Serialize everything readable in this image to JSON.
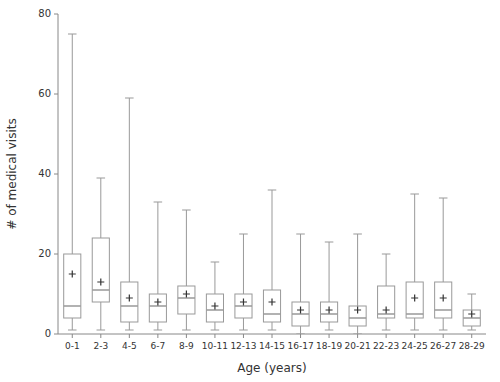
{
  "chart_data": {
    "type": "box",
    "xlabel": "Age (years)",
    "ylabel": "# of medical visits",
    "categories": [
      "0-1",
      "2-3",
      "4-5",
      "6-7",
      "8-9",
      "10-11",
      "12-13",
      "14-15",
      "16-17",
      "18-19",
      "20-21",
      "22-23",
      "24-25",
      "26-27",
      "28-29"
    ],
    "boxes": [
      {
        "whislo": 1,
        "q1": 4,
        "med": 7,
        "q3": 20,
        "whishi": 75,
        "mean": 15
      },
      {
        "whislo": 1,
        "q1": 8,
        "med": 11,
        "q3": 24,
        "whishi": 39,
        "mean": 13
      },
      {
        "whislo": 1,
        "q1": 3,
        "med": 7,
        "q3": 13,
        "whishi": 59,
        "mean": 9
      },
      {
        "whislo": 1,
        "q1": 3,
        "med": 7,
        "q3": 10,
        "whishi": 33,
        "mean": 8
      },
      {
        "whislo": 1,
        "q1": 5,
        "med": 9,
        "q3": 12,
        "whishi": 31,
        "mean": 10
      },
      {
        "whislo": 1,
        "q1": 3,
        "med": 6,
        "q3": 10,
        "whishi": 18,
        "mean": 7
      },
      {
        "whislo": 1,
        "q1": 4,
        "med": 7,
        "q3": 10,
        "whishi": 25,
        "mean": 8
      },
      {
        "whislo": 1,
        "q1": 3,
        "med": 5,
        "q3": 11,
        "whishi": 36,
        "mean": 8
      },
      {
        "whislo": 0,
        "q1": 2,
        "med": 5,
        "q3": 8,
        "whishi": 25,
        "mean": 6
      },
      {
        "whislo": 1,
        "q1": 3,
        "med": 5,
        "q3": 8,
        "whishi": 23,
        "mean": 6
      },
      {
        "whislo": 0,
        "q1": 2,
        "med": 4,
        "q3": 7,
        "whishi": 25,
        "mean": 6
      },
      {
        "whislo": 1,
        "q1": 4,
        "med": 5,
        "q3": 12,
        "whishi": 20,
        "mean": 6
      },
      {
        "whislo": 1,
        "q1": 4,
        "med": 5,
        "q3": 13,
        "whishi": 35,
        "mean": 9
      },
      {
        "whislo": 1,
        "q1": 4,
        "med": 6,
        "q3": 13,
        "whishi": 34,
        "mean": 9
      },
      {
        "whislo": 1,
        "q1": 2,
        "med": 4,
        "q3": 6,
        "whishi": 10,
        "mean": 5
      }
    ],
    "color": "#999999",
    "marker": "plus",
    "ylim": [
      0,
      80
    ],
    "yticks": [
      0,
      20,
      40,
      60,
      80
    ],
    "grid": false
  }
}
